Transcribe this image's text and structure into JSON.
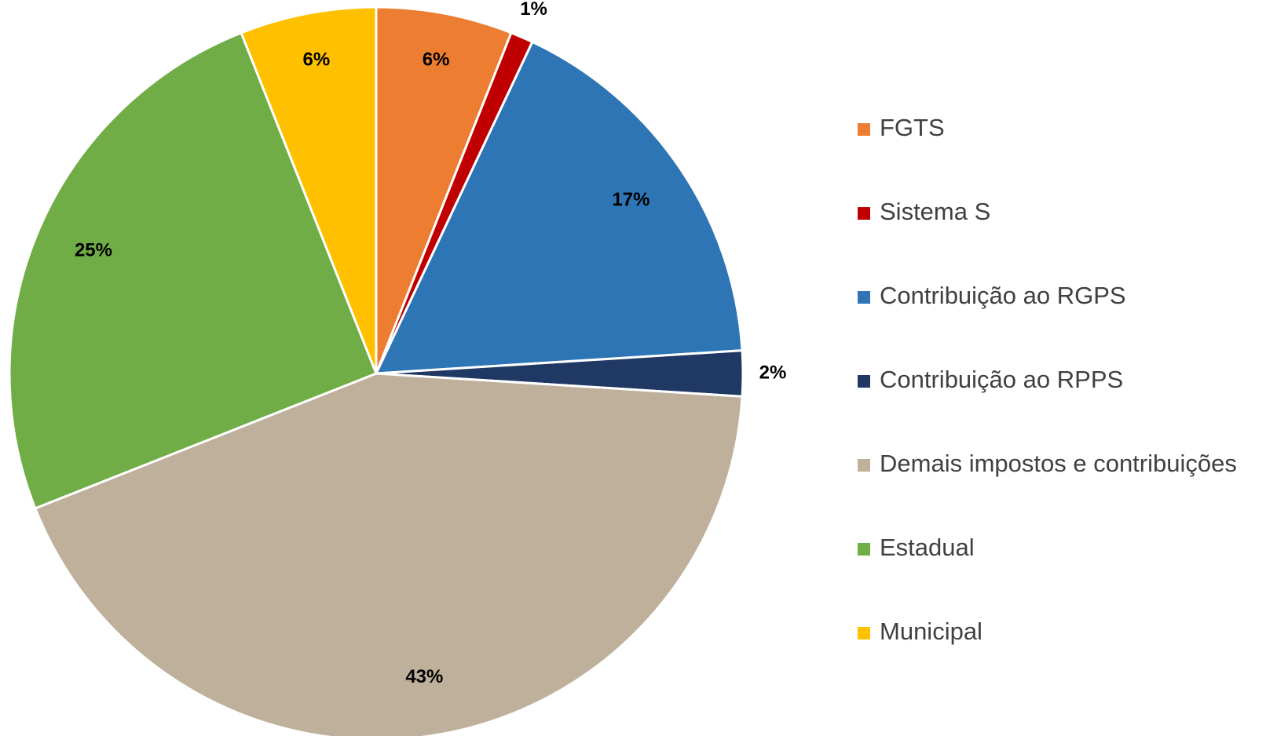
{
  "chart_data": {
    "type": "pie",
    "categories": [
      "FGTS",
      "Sistema S",
      "Contribuição ao RGPS",
      "Contribuição ao RPPS",
      "Demais impostos e contribuições",
      "Estadual",
      "Municipal"
    ],
    "values": [
      6,
      1,
      17,
      2,
      43,
      25,
      6
    ],
    "value_labels": [
      "6%",
      "1%",
      "17%",
      "2%",
      "43%",
      "25%",
      "6%"
    ],
    "colors": [
      "#ed7d31",
      "#c00000",
      "#2e75b6",
      "#203864",
      "#bfb09c",
      "#70ad47",
      "#ffc000"
    ],
    "legend": "right"
  }
}
